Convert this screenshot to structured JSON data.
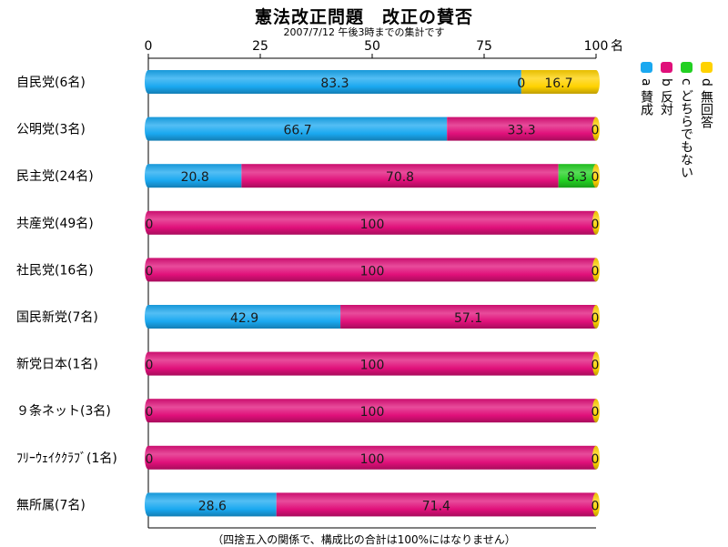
{
  "chart_data": {
    "type": "bar",
    "stacked": true,
    "orientation": "horizontal",
    "title": "憲法改正問題　改正の賛否",
    "subtitle": "2007/7/12 午後3時までの集計です",
    "footnote": "（四捨五入の関係で、構成比の合計は100%にはなりません）",
    "x_unit": "名",
    "xlim": [
      0,
      100
    ],
    "x_ticks": [
      "0",
      "25",
      "50",
      "75",
      "100"
    ],
    "categories": [
      "自民党(6名)",
      "公明党(3名)",
      "民主党(24名)",
      "共産党(49名)",
      "社民党(16名)",
      "国民新党(7名)",
      "新党日本(1名)",
      "９条ネット(3名)",
      "ﾌﾘｰｳｪｲｸｸﾗﾌﾞ(1名)",
      "無所属(7名)"
    ],
    "series": [
      {
        "name": "a 賛成",
        "color": "#1aa8f0",
        "values": [
          83.3,
          66.7,
          20.8,
          0,
          0,
          42.9,
          0,
          0,
          0,
          28.6
        ],
        "labels": [
          "83.3",
          "66.7",
          "20.8",
          "0",
          "0",
          "42.9",
          "0",
          "0",
          "0",
          "28.6"
        ]
      },
      {
        "name": "b 反対",
        "color": "#e0107a",
        "values": [
          0,
          33.3,
          70.8,
          100,
          100,
          57.1,
          100,
          100,
          100,
          71.4
        ],
        "labels": [
          "0",
          "33.3",
          "70.8",
          "100",
          "100",
          "57.1",
          "100",
          "100",
          "100",
          "71.4"
        ]
      },
      {
        "name": "c どちらでもない",
        "color": "#22d022",
        "values": [
          0,
          0,
          8.3,
          0,
          0,
          0,
          0,
          0,
          0,
          0
        ],
        "labels": [
          "",
          "",
          "8.3",
          "",
          "",
          "",
          "",
          "",
          "",
          ""
        ]
      },
      {
        "name": "d 無回答",
        "color": "#ffd200",
        "values": [
          16.7,
          0,
          0,
          0,
          0,
          0,
          0,
          0,
          0,
          0
        ],
        "labels": [
          "16.7",
          "0",
          "0",
          "0",
          "0",
          "0",
          "0",
          "0",
          "0",
          "0"
        ]
      }
    ],
    "legend_position": "right",
    "grid": false
  }
}
